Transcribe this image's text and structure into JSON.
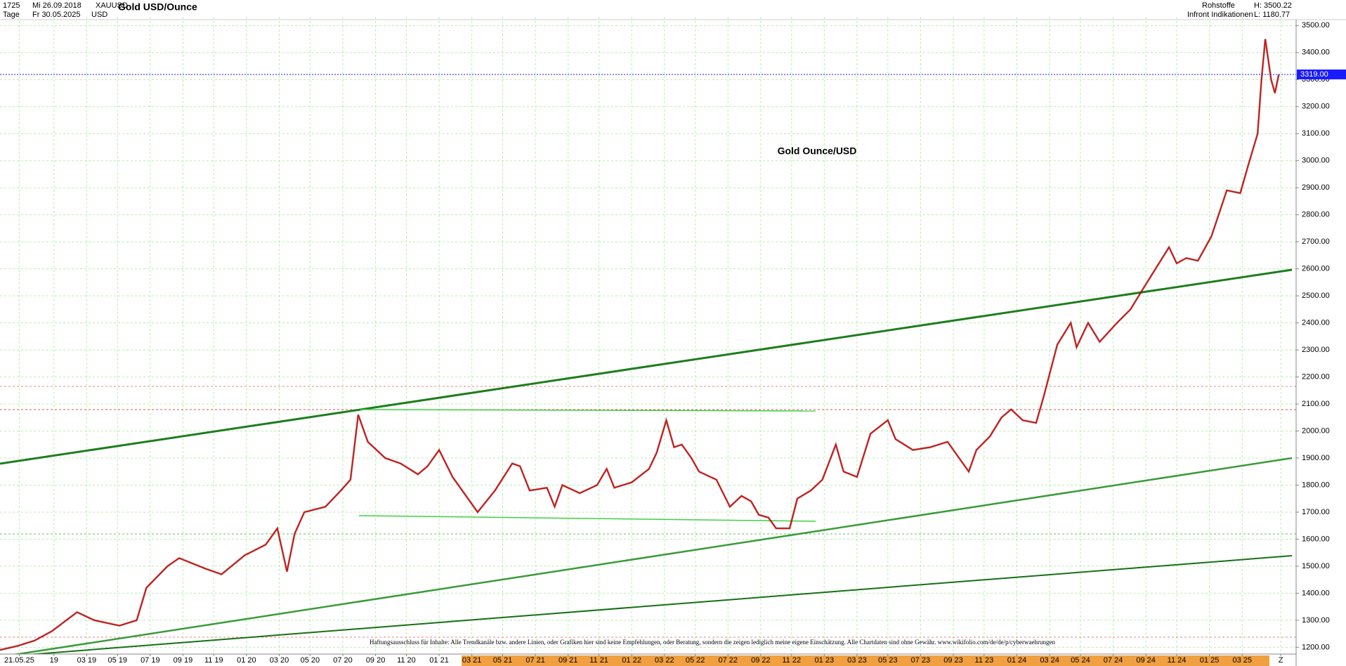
{
  "header": {
    "id": "1725",
    "start_date": "Mi 26.09.2018",
    "symbol": "XAUUSD",
    "title": "Gold USD/Ounce",
    "period": "Tage",
    "end_date": "Fr 30.05.2025",
    "currency": "USD",
    "group": "Rohstoffe",
    "source": "Infront Indikationen",
    "high": "H: 3500.22",
    "low": "L: 1180.77"
  },
  "chart_data": {
    "type": "line",
    "annotation": "Gold Ounce/USD",
    "disclaimer": "Haftungsausschluss für Inhalte: Alle Trendkanäle bzw. andere Linien, oder Grafiken hier sind keine Empfehlungen, oder Beratung, sondern die zeigen lediglich meine eigene Einschätzung. Alle Chartdaten sind ohne Gewähr.  www.wikifolio.com/de/de/p/cyberwaehrungen",
    "color": "#e00000",
    "grid": true,
    "last_price": {
      "value": 3319,
      "label": "3319.00"
    },
    "xlim": [
      2018.72,
      2025.45
    ],
    "ylim": [
      1175,
      3532
    ],
    "x": [
      2018.72,
      2018.81,
      2018.9,
      2018.99,
      2019.12,
      2019.21,
      2019.34,
      2019.43,
      2019.48,
      2019.59,
      2019.65,
      2019.79,
      2019.87,
      2019.99,
      2020.1,
      2020.16,
      2020.21,
      2020.25,
      2020.3,
      2020.41,
      2020.49,
      2020.54,
      2020.58,
      2020.63,
      2020.72,
      2020.8,
      2020.89,
      2020.94,
      2021.0,
      2021.07,
      2021.16,
      2021.2,
      2021.29,
      2021.38,
      2021.42,
      2021.47,
      2021.56,
      2021.6,
      2021.64,
      2021.73,
      2021.82,
      2021.87,
      2021.91,
      2022.0,
      2022.09,
      2022.13,
      2022.18,
      2022.22,
      2022.26,
      2022.31,
      2022.35,
      2022.44,
      2022.51,
      2022.57,
      2022.62,
      2022.66,
      2022.71,
      2022.75,
      2022.82,
      2022.86,
      2022.93,
      2022.99,
      2023.06,
      2023.1,
      2023.17,
      2023.24,
      2023.33,
      2023.37,
      2023.46,
      2023.55,
      2023.64,
      2023.68,
      2023.75,
      2023.79,
      2023.86,
      2023.92,
      2023.97,
      2024.03,
      2024.1,
      2024.14,
      2024.21,
      2024.28,
      2024.31,
      2024.37,
      2024.43,
      2024.52,
      2024.59,
      2024.65,
      2024.72,
      2024.79,
      2024.83,
      2024.88,
      2024.94,
      2025.01,
      2025.09,
      2025.16,
      2025.2,
      2025.25,
      2025.27,
      2025.29,
      2025.32,
      2025.34,
      2025.36
    ],
    "values": [
      1190,
      1205,
      1225,
      1260,
      1330,
      1300,
      1280,
      1300,
      1420,
      1500,
      1530,
      1490,
      1470,
      1540,
      1580,
      1640,
      1480,
      1620,
      1700,
      1720,
      1780,
      1820,
      2060,
      1960,
      1900,
      1880,
      1840,
      1870,
      1930,
      1830,
      1740,
      1700,
      1780,
      1880,
      1870,
      1780,
      1790,
      1720,
      1800,
      1770,
      1800,
      1860,
      1790,
      1810,
      1860,
      1920,
      2040,
      1940,
      1950,
      1900,
      1850,
      1820,
      1720,
      1760,
      1740,
      1690,
      1680,
      1640,
      1640,
      1750,
      1780,
      1820,
      1950,
      1850,
      1830,
      1990,
      2040,
      1970,
      1930,
      1940,
      1960,
      1920,
      1850,
      1930,
      1980,
      2050,
      2080,
      2040,
      2030,
      2130,
      2320,
      2400,
      2310,
      2400,
      2330,
      2400,
      2450,
      2520,
      2600,
      2680,
      2620,
      2640,
      2630,
      2720,
      2890,
      2880,
      2980,
      3100,
      3300,
      3450,
      3300,
      3250,
      3319
    ],
    "yticks": [
      {
        "value": 1200,
        "label": "1200.00"
      },
      {
        "value": 1300,
        "label": "1300.00"
      },
      {
        "value": 1400,
        "label": "1400.00"
      },
      {
        "value": 1500,
        "label": "1500.00"
      },
      {
        "value": 1600,
        "label": "1600.00"
      },
      {
        "value": 1700,
        "label": "1700.00"
      },
      {
        "value": 1800,
        "label": "1800.00"
      },
      {
        "value": 1900,
        "label": "1900.00"
      },
      {
        "value": 2000,
        "label": "2000.00"
      },
      {
        "value": 2100,
        "label": "2100.00"
      },
      {
        "value": 2200,
        "label": "2200.00"
      },
      {
        "value": 2300,
        "label": "2300.00"
      },
      {
        "value": 2400,
        "label": "2400.00"
      },
      {
        "value": 2500,
        "label": "2500.00"
      },
      {
        "value": 2600,
        "label": "2600.00"
      },
      {
        "value": 2700,
        "label": "2700.00"
      },
      {
        "value": 2800,
        "label": "2800.00"
      },
      {
        "value": 2900,
        "label": "2900.00"
      },
      {
        "value": 3000,
        "label": "3000.00"
      },
      {
        "value": 3100,
        "label": "3100.00"
      },
      {
        "value": 3200,
        "label": "3200.00"
      },
      {
        "value": 3300,
        "label": "3300.00"
      },
      {
        "value": 3400,
        "label": "3400.00"
      },
      {
        "value": 3500,
        "label": "3500.00"
      }
    ],
    "xticks": [
      {
        "value": 2018.82,
        "label": "21.05.25"
      },
      {
        "value": 2019.0,
        "label": "19"
      },
      {
        "value": 2019.17,
        "label": "03 19"
      },
      {
        "value": 2019.33,
        "label": "05 19"
      },
      {
        "value": 2019.5,
        "label": "07 19"
      },
      {
        "value": 2019.67,
        "label": "09 19"
      },
      {
        "value": 2019.83,
        "label": "11 19"
      },
      {
        "value": 2020.0,
        "label": "01 20"
      },
      {
        "value": 2020.17,
        "label": "03 20"
      },
      {
        "value": 2020.33,
        "label": "05 20"
      },
      {
        "value": 2020.5,
        "label": "07 20"
      },
      {
        "value": 2020.67,
        "label": "09 20"
      },
      {
        "value": 2020.83,
        "label": "11 20"
      },
      {
        "value": 2021.0,
        "label": "01 21"
      },
      {
        "value": 2021.17,
        "label": "03 21"
      },
      {
        "value": 2021.33,
        "label": "05 21"
      },
      {
        "value": 2021.5,
        "label": "07 21"
      },
      {
        "value": 2021.67,
        "label": "09 21"
      },
      {
        "value": 2021.83,
        "label": "11 21"
      },
      {
        "value": 2022.0,
        "label": "01 22"
      },
      {
        "value": 2022.17,
        "label": "03 22"
      },
      {
        "value": 2022.33,
        "label": "05 22"
      },
      {
        "value": 2022.5,
        "label": "07 22"
      },
      {
        "value": 2022.67,
        "label": "09 22"
      },
      {
        "value": 2022.83,
        "label": "11 22"
      },
      {
        "value": 2023.0,
        "label": "01 23"
      },
      {
        "value": 2023.17,
        "label": "03 23"
      },
      {
        "value": 2023.33,
        "label": "05 23"
      },
      {
        "value": 2023.5,
        "label": "07 23"
      },
      {
        "value": 2023.67,
        "label": "09 23"
      },
      {
        "value": 2023.83,
        "label": "11 23"
      },
      {
        "value": 2024.0,
        "label": "01 24"
      },
      {
        "value": 2024.17,
        "label": "03 24"
      },
      {
        "value": 2024.33,
        "label": "05 24"
      },
      {
        "value": 2024.5,
        "label": "07 24"
      },
      {
        "value": 2024.67,
        "label": "09 24"
      },
      {
        "value": 2024.83,
        "label": "11 24"
      },
      {
        "value": 2025.0,
        "label": "01 25"
      },
      {
        "value": 2025.17,
        "label": "03 25"
      },
      {
        "value": 2025.37,
        "label": "Z"
      }
    ]
  }
}
